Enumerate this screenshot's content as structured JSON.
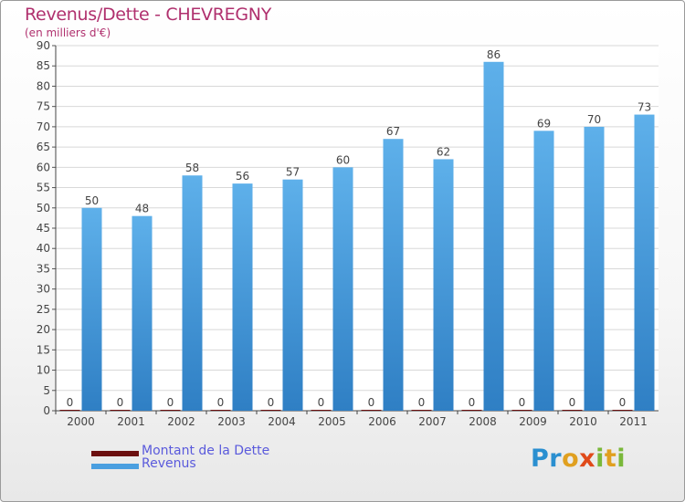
{
  "header": {
    "title": "Revenus/Dette - CHEVREGNY",
    "subtitle": "(en milliers d'€)"
  },
  "logo": {
    "text": "Proxiti",
    "colors": [
      "#2a8fd0",
      "#e0a020",
      "#e04a1a",
      "#7ab83a"
    ]
  },
  "legend": {
    "items": [
      {
        "label": "Montant de la Dette",
        "color": "#6b0f0f"
      },
      {
        "label": "Revenus",
        "color": "#4a9fe0"
      }
    ]
  },
  "chart_data": {
    "type": "bar",
    "title": "Revenus/Dette - CHEVREGNY",
    "subtitle": "(en milliers d'€)",
    "categories": [
      "2000",
      "2001",
      "2002",
      "2003",
      "2004",
      "2005",
      "2006",
      "2007",
      "2008",
      "2009",
      "2010",
      "2011"
    ],
    "series": [
      {
        "name": "Montant de la Dette",
        "color": "#6b0f0f",
        "values": [
          0,
          0,
          0,
          0,
          0,
          0,
          0,
          0,
          0,
          0,
          0,
          0
        ]
      },
      {
        "name": "Revenus",
        "color": "#4a9fe0",
        "values": [
          50,
          48,
          58,
          56,
          57,
          60,
          67,
          62,
          86,
          69,
          70,
          73
        ]
      }
    ],
    "ylim": [
      0,
      90
    ],
    "yticks": [
      0,
      5,
      10,
      15,
      20,
      25,
      30,
      35,
      40,
      45,
      50,
      55,
      60,
      65,
      70,
      75,
      80,
      85,
      90
    ],
    "grid": true,
    "legend_position": "bottom-left"
  }
}
